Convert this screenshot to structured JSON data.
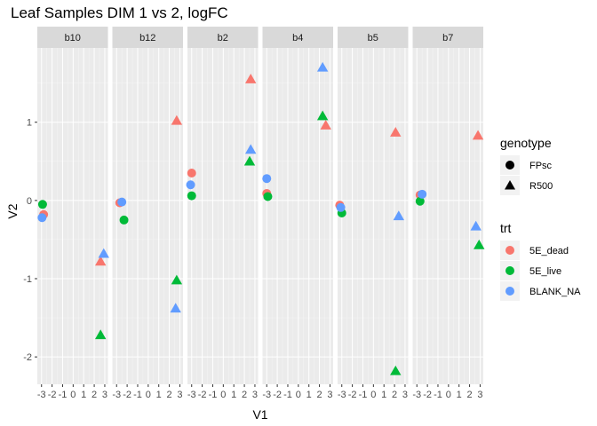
{
  "chart_data": {
    "type": "scatter",
    "title": "Leaf Samples DIM 1 vs 2, logFC",
    "xlabel": "V1",
    "ylabel": "V2",
    "xlim": [
      -3.4,
      3.3
    ],
    "ylim": [
      -2.35,
      1.95
    ],
    "x_ticks": [
      -3,
      -2,
      -1,
      0,
      1,
      2,
      3
    ],
    "x_tick_labels": [
      "-3",
      "-2",
      "-1",
      "0",
      "1",
      "2",
      "3"
    ],
    "y_ticks": [
      -2,
      -1,
      0,
      1
    ],
    "y_tick_labels": [
      "-2",
      "-1",
      "0",
      "1"
    ],
    "facets": [
      "b10",
      "b12",
      "b2",
      "b4",
      "b5",
      "b7"
    ],
    "colors": {
      "5E_dead": "#F8766D",
      "5E_live": "#00BA38",
      "BLANK_NA": "#619CFF"
    },
    "legend_genotype": {
      "title": "genotype",
      "items": [
        {
          "label": "FPsc",
          "shape": "circle"
        },
        {
          "label": "R500",
          "shape": "triangle"
        }
      ]
    },
    "legend_trt": {
      "title": "trt",
      "items": [
        {
          "label": "5E_dead",
          "key": "5E_dead"
        },
        {
          "label": "5E_live",
          "key": "5E_live"
        },
        {
          "label": "BLANK_NA",
          "key": "BLANK_NA"
        }
      ]
    },
    "points": [
      {
        "facet": "b10",
        "x": -2.8,
        "y": -0.18,
        "trt": "5E_dead",
        "genotype": "FPsc"
      },
      {
        "facet": "b10",
        "x": -2.9,
        "y": -0.05,
        "trt": "5E_live",
        "genotype": "FPsc"
      },
      {
        "facet": "b10",
        "x": -2.95,
        "y": -0.22,
        "trt": "BLANK_NA",
        "genotype": "FPsc"
      },
      {
        "facet": "b10",
        "x": 2.6,
        "y": -0.78,
        "trt": "5E_dead",
        "genotype": "R500"
      },
      {
        "facet": "b10",
        "x": 2.6,
        "y": -1.72,
        "trt": "5E_live",
        "genotype": "R500"
      },
      {
        "facet": "b10",
        "x": 2.9,
        "y": -0.68,
        "trt": "BLANK_NA",
        "genotype": "R500"
      },
      {
        "facet": "b12",
        "x": -2.7,
        "y": -0.03,
        "trt": "5E_dead",
        "genotype": "FPsc"
      },
      {
        "facet": "b12",
        "x": -2.3,
        "y": -0.25,
        "trt": "5E_live",
        "genotype": "FPsc"
      },
      {
        "facet": "b12",
        "x": -2.5,
        "y": -0.02,
        "trt": "BLANK_NA",
        "genotype": "FPsc"
      },
      {
        "facet": "b12",
        "x": 2.7,
        "y": 1.02,
        "trt": "5E_dead",
        "genotype": "R500"
      },
      {
        "facet": "b12",
        "x": 2.7,
        "y": -1.02,
        "trt": "5E_live",
        "genotype": "R500"
      },
      {
        "facet": "b12",
        "x": 2.6,
        "y": -1.38,
        "trt": "BLANK_NA",
        "genotype": "R500"
      },
      {
        "facet": "b2",
        "x": -3.0,
        "y": 0.35,
        "trt": "5E_dead",
        "genotype": "FPsc"
      },
      {
        "facet": "b2",
        "x": -3.0,
        "y": 0.06,
        "trt": "5E_live",
        "genotype": "FPsc"
      },
      {
        "facet": "b2",
        "x": -3.1,
        "y": 0.2,
        "trt": "BLANK_NA",
        "genotype": "FPsc"
      },
      {
        "facet": "b2",
        "x": 2.6,
        "y": 1.55,
        "trt": "5E_dead",
        "genotype": "R500"
      },
      {
        "facet": "b2",
        "x": 2.5,
        "y": 0.5,
        "trt": "5E_live",
        "genotype": "R500"
      },
      {
        "facet": "b2",
        "x": 2.6,
        "y": 0.65,
        "trt": "BLANK_NA",
        "genotype": "R500"
      },
      {
        "facet": "b4",
        "x": -3.0,
        "y": 0.09,
        "trt": "5E_dead",
        "genotype": "FPsc"
      },
      {
        "facet": "b4",
        "x": -2.9,
        "y": 0.05,
        "trt": "5E_live",
        "genotype": "FPsc"
      },
      {
        "facet": "b4",
        "x": -3.0,
        "y": 0.28,
        "trt": "BLANK_NA",
        "genotype": "FPsc"
      },
      {
        "facet": "b4",
        "x": 2.6,
        "y": 0.96,
        "trt": "5E_dead",
        "genotype": "R500"
      },
      {
        "facet": "b4",
        "x": 2.3,
        "y": 1.08,
        "trt": "5E_live",
        "genotype": "R500"
      },
      {
        "facet": "b4",
        "x": 2.3,
        "y": 1.7,
        "trt": "BLANK_NA",
        "genotype": "R500"
      },
      {
        "facet": "b5",
        "x": -3.2,
        "y": -0.06,
        "trt": "5E_dead",
        "genotype": "FPsc"
      },
      {
        "facet": "b5",
        "x": -3.0,
        "y": -0.16,
        "trt": "5E_live",
        "genotype": "FPsc"
      },
      {
        "facet": "b5",
        "x": -3.1,
        "y": -0.09,
        "trt": "BLANK_NA",
        "genotype": "FPsc"
      },
      {
        "facet": "b5",
        "x": 2.1,
        "y": 0.87,
        "trt": "5E_dead",
        "genotype": "R500"
      },
      {
        "facet": "b5",
        "x": 2.1,
        "y": -2.18,
        "trt": "5E_live",
        "genotype": "R500"
      },
      {
        "facet": "b5",
        "x": 2.4,
        "y": -0.2,
        "trt": "BLANK_NA",
        "genotype": "R500"
      },
      {
        "facet": "b7",
        "x": -2.7,
        "y": 0.07,
        "trt": "5E_dead",
        "genotype": "FPsc"
      },
      {
        "facet": "b7",
        "x": -2.7,
        "y": -0.01,
        "trt": "5E_live",
        "genotype": "FPsc"
      },
      {
        "facet": "b7",
        "x": -2.5,
        "y": 0.08,
        "trt": "BLANK_NA",
        "genotype": "FPsc"
      },
      {
        "facet": "b7",
        "x": 2.8,
        "y": 0.83,
        "trt": "5E_dead",
        "genotype": "R500"
      },
      {
        "facet": "b7",
        "x": 2.9,
        "y": -0.57,
        "trt": "5E_live",
        "genotype": "R500"
      },
      {
        "facet": "b7",
        "x": 2.6,
        "y": -0.33,
        "trt": "BLANK_NA",
        "genotype": "R500"
      }
    ]
  }
}
